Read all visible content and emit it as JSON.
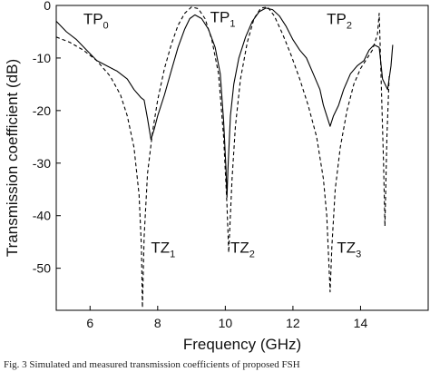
{
  "chart_data": {
    "type": "line",
    "xlabel": "Frequency (GHz)",
    "ylabel": "Transmission coefficient (dB)",
    "xlim": [
      5,
      16
    ],
    "ylim": [
      -58,
      0
    ],
    "xticks": [
      6,
      8,
      10,
      12,
      14
    ],
    "xtick_labels": [
      "6",
      "8",
      "10",
      "12",
      "14"
    ],
    "yticks": [
      0,
      -10,
      -20,
      -30,
      -40,
      -50
    ],
    "ytick_labels": [
      "0",
      "-10",
      "-20",
      "-30",
      "-40",
      "-50"
    ],
    "grid": false,
    "series": [
      {
        "style": "solid",
        "color": "#000000",
        "points": [
          [
            5.0,
            -3
          ],
          [
            5.3,
            -5
          ],
          [
            5.6,
            -6.5
          ],
          [
            5.9,
            -8.5
          ],
          [
            6.2,
            -10.5
          ],
          [
            6.5,
            -11.5
          ],
          [
            6.8,
            -12.5
          ],
          [
            7.1,
            -14
          ],
          [
            7.3,
            -16
          ],
          [
            7.5,
            -17.5
          ],
          [
            7.6,
            -18
          ],
          [
            7.7,
            -21.5
          ],
          [
            7.8,
            -25.5
          ],
          [
            7.9,
            -23.5
          ],
          [
            8.0,
            -21
          ],
          [
            8.2,
            -17
          ],
          [
            8.4,
            -12.5
          ],
          [
            8.6,
            -8
          ],
          [
            8.8,
            -4.5
          ],
          [
            8.95,
            -2.5
          ],
          [
            9.1,
            -1.8
          ],
          [
            9.3,
            -2.5
          ],
          [
            9.5,
            -4.5
          ],
          [
            9.7,
            -8
          ],
          [
            9.85,
            -13
          ],
          [
            9.95,
            -22
          ],
          [
            10.02,
            -31
          ],
          [
            10.05,
            -36.5
          ],
          [
            10.08,
            -31
          ],
          [
            10.15,
            -21
          ],
          [
            10.25,
            -15
          ],
          [
            10.4,
            -10
          ],
          [
            10.6,
            -6
          ],
          [
            10.8,
            -3
          ],
          [
            11.0,
            -1.2
          ],
          [
            11.2,
            -0.5
          ],
          [
            11.4,
            -0.8
          ],
          [
            11.6,
            -2
          ],
          [
            11.8,
            -4
          ],
          [
            12.0,
            -6.5
          ],
          [
            12.2,
            -8.5
          ],
          [
            12.4,
            -10
          ],
          [
            12.6,
            -13
          ],
          [
            12.8,
            -16
          ],
          [
            12.9,
            -19
          ],
          [
            13.0,
            -21
          ],
          [
            13.1,
            -23
          ],
          [
            13.2,
            -21
          ],
          [
            13.35,
            -19
          ],
          [
            13.5,
            -16
          ],
          [
            13.7,
            -13
          ],
          [
            13.9,
            -11.5
          ],
          [
            14.1,
            -10.5
          ],
          [
            14.25,
            -8.5
          ],
          [
            14.4,
            -7.5
          ],
          [
            14.55,
            -8
          ],
          [
            14.65,
            -14
          ],
          [
            14.8,
            -16
          ],
          [
            14.9,
            -11.5
          ],
          [
            14.95,
            -7.5
          ]
        ]
      },
      {
        "style": "dashed",
        "color": "#000000",
        "points": [
          [
            5.0,
            -6
          ],
          [
            5.4,
            -7
          ],
          [
            5.8,
            -8.5
          ],
          [
            6.2,
            -10.5
          ],
          [
            6.6,
            -13.5
          ],
          [
            6.9,
            -17
          ],
          [
            7.1,
            -21
          ],
          [
            7.3,
            -27
          ],
          [
            7.45,
            -36
          ],
          [
            7.52,
            -46
          ],
          [
            7.55,
            -57.5
          ],
          [
            7.6,
            -44
          ],
          [
            7.7,
            -32
          ],
          [
            7.85,
            -24
          ],
          [
            8.0,
            -18
          ],
          [
            8.2,
            -12
          ],
          [
            8.4,
            -7.5
          ],
          [
            8.6,
            -3.8
          ],
          [
            8.8,
            -1.5
          ],
          [
            9.0,
            -0.3
          ],
          [
            9.2,
            -0.6
          ],
          [
            9.4,
            -2.5
          ],
          [
            9.6,
            -6.5
          ],
          [
            9.8,
            -13
          ],
          [
            9.95,
            -25
          ],
          [
            10.05,
            -38
          ],
          [
            10.1,
            -47
          ],
          [
            10.2,
            -33
          ],
          [
            10.3,
            -23
          ],
          [
            10.45,
            -14
          ],
          [
            10.65,
            -7
          ],
          [
            10.85,
            -2.5
          ],
          [
            11.05,
            -0.5
          ],
          [
            11.25,
            -0.3
          ],
          [
            11.45,
            -2
          ],
          [
            11.7,
            -5.5
          ],
          [
            11.95,
            -9.5
          ],
          [
            12.2,
            -14
          ],
          [
            12.45,
            -19
          ],
          [
            12.7,
            -25
          ],
          [
            12.9,
            -33
          ],
          [
            13.0,
            -40
          ],
          [
            13.1,
            -54.5
          ],
          [
            13.15,
            -46
          ],
          [
            13.25,
            -35
          ],
          [
            13.4,
            -27
          ],
          [
            13.6,
            -20
          ],
          [
            13.8,
            -15
          ],
          [
            14.0,
            -12
          ],
          [
            14.2,
            -10
          ],
          [
            14.35,
            -8.5
          ],
          [
            14.5,
            -5.5
          ],
          [
            14.55,
            -1.5
          ],
          [
            14.6,
            -12
          ],
          [
            14.68,
            -30
          ],
          [
            14.72,
            -42
          ],
          [
            14.78,
            -25
          ],
          [
            14.85,
            -13
          ]
        ]
      }
    ],
    "annotations": [
      {
        "base": "TP",
        "sub": "0",
        "x": 5.8,
        "y": -3.5
      },
      {
        "base": "TP",
        "sub": "1",
        "x": 9.55,
        "y": -3.2
      },
      {
        "base": "TP",
        "sub": "2",
        "x": 13.0,
        "y": -3.5
      },
      {
        "base": "TZ",
        "sub": "1",
        "x": 7.8,
        "y": -47
      },
      {
        "base": "TZ",
        "sub": "2",
        "x": 10.15,
        "y": -47
      },
      {
        "base": "TZ",
        "sub": "3",
        "x": 13.3,
        "y": -47
      }
    ]
  },
  "caption": "Fig. 3    Simulated and measured transmission coefficients of proposed FSH"
}
